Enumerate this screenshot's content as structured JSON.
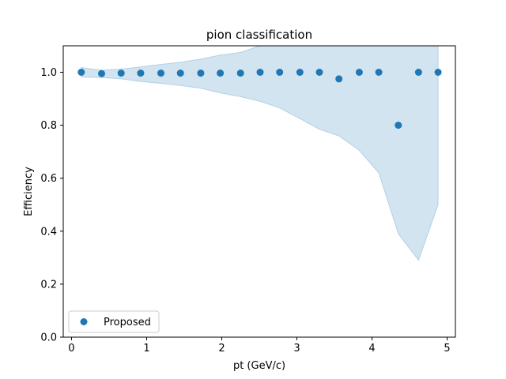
{
  "chart_data": {
    "type": "scatter",
    "title": "pion classification",
    "xlabel": "pt (GeV/c)",
    "ylabel": "Efficiency",
    "xlim": [
      -0.11,
      5.11
    ],
    "ylim": [
      0.0,
      1.1
    ],
    "xticks": [
      0,
      1,
      2,
      3,
      4,
      5
    ],
    "xtick_labels": [
      "0",
      "1",
      "2",
      "3",
      "4",
      "5"
    ],
    "yticks": [
      0.0,
      0.2,
      0.4,
      0.6,
      0.8,
      1.0
    ],
    "ytick_labels": [
      "0.0",
      "0.2",
      "0.4",
      "0.6",
      "0.8",
      "1.0"
    ],
    "grid": false,
    "legend": {
      "position": "lower-left",
      "entries": [
        "Proposed"
      ]
    },
    "series": [
      {
        "name": "Proposed",
        "color": "#1f77b4",
        "x": [
          0.13,
          0.4,
          0.66,
          0.92,
          1.19,
          1.45,
          1.72,
          1.98,
          2.25,
          2.51,
          2.77,
          3.04,
          3.3,
          3.56,
          3.83,
          4.09,
          4.35,
          4.62,
          4.88
        ],
        "y": [
          1.0,
          0.995,
          0.997,
          0.997,
          0.997,
          0.997,
          0.997,
          0.997,
          0.997,
          1.0,
          1.0,
          1.0,
          1.0,
          0.975,
          1.0,
          1.0,
          0.8,
          1.0,
          1.0
        ]
      }
    ],
    "band": {
      "color": "#1f77b4",
      "opacity": 0.2,
      "x": [
        0.13,
        0.4,
        0.66,
        0.92,
        1.19,
        1.45,
        1.72,
        1.98,
        2.25,
        2.51,
        2.77,
        3.04,
        3.3,
        3.56,
        3.83,
        4.09,
        4.35,
        4.62,
        4.88
      ],
      "upper": [
        1.018,
        1.008,
        1.012,
        1.02,
        1.03,
        1.038,
        1.05,
        1.065,
        1.075,
        1.1,
        1.12,
        1.12,
        1.12,
        1.12,
        1.12,
        1.12,
        1.12,
        1.12,
        1.12
      ],
      "lower": [
        0.982,
        0.98,
        0.975,
        0.965,
        0.958,
        0.95,
        0.94,
        0.922,
        0.908,
        0.89,
        0.865,
        0.825,
        0.785,
        0.76,
        0.705,
        0.62,
        0.39,
        0.29,
        0.5
      ]
    }
  }
}
